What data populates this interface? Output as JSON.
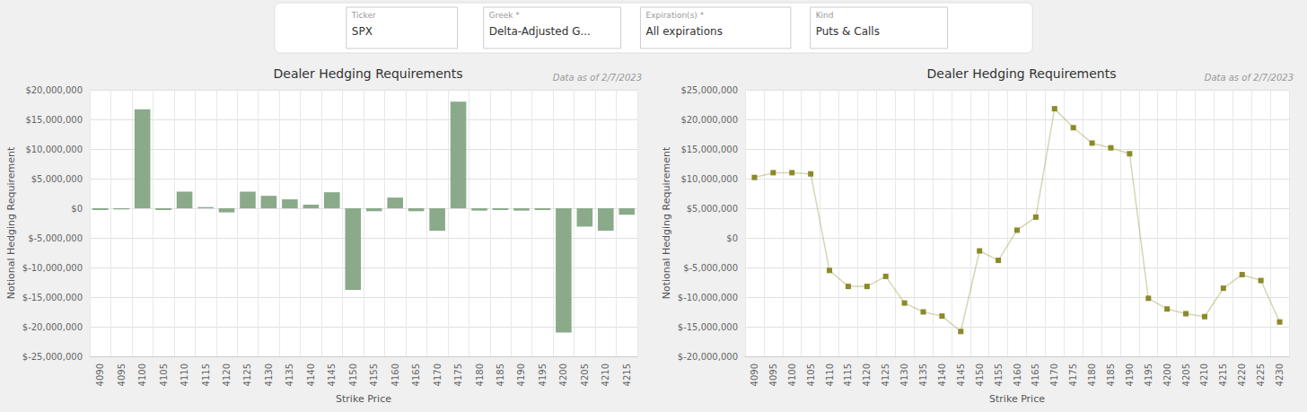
{
  "annotations": [
    {
      "label": "Ticker",
      "text": "SPX"
    },
    {
      "label": "Greek *",
      "text": "Delta-Adjusted G..."
    },
    {
      "label": "Expiration(s) *",
      "text": "All expirations"
    },
    {
      "label": "Kind",
      "text": "Puts & Calls"
    }
  ],
  "chart_data": [
    {
      "type": "bar",
      "title": "Dealer Hedging Requirements",
      "subtitle": "Data as of 2/7/2023",
      "xlabel": "Strike Price",
      "ylabel": "Notional Hedging Requirement",
      "categories": [
        4090,
        4095,
        4100,
        4105,
        4110,
        4115,
        4120,
        4125,
        4130,
        4135,
        4140,
        4145,
        4150,
        4155,
        4160,
        4165,
        4170,
        4175,
        4180,
        4185,
        4190,
        4195,
        4200,
        4205,
        4210,
        4215
      ],
      "values": [
        -300000,
        -200000,
        16700000,
        -300000,
        2800000,
        200000,
        -700000,
        2800000,
        2100000,
        1500000,
        600000,
        2700000,
        -13800000,
        -500000,
        1800000,
        -500000,
        -3800000,
        18000000,
        -400000,
        -300000,
        -400000,
        -300000,
        -21000000,
        -3100000,
        -3800000,
        -1100000
      ],
      "color": "#8aaa8a",
      "ylim": [
        -25000000,
        20000000
      ],
      "yticks": [
        {
          "value": -25000000,
          "label": "$-25,000,000"
        },
        {
          "value": -20000000,
          "label": "$-20,000,000"
        },
        {
          "value": -15000000,
          "label": "$-15,000,000"
        },
        {
          "value": -10000000,
          "label": "$-10,000,000"
        },
        {
          "value": -5000000,
          "label": "$-5,000,000"
        },
        {
          "value": 0,
          "label": "$0"
        },
        {
          "value": 5000000,
          "label": "$5,000,000"
        },
        {
          "value": 10000000,
          "label": "$10,000,000"
        },
        {
          "value": 15000000,
          "label": "$15,000,000"
        },
        {
          "value": 20000000,
          "label": "$20,000,000"
        }
      ],
      "grid": true
    },
    {
      "type": "line",
      "title": "Dealer Hedging Requirements",
      "subtitle": "Data as of 2/7/2023",
      "xlabel": "Strike Price",
      "ylabel": "Notional Hedging Requirement",
      "categories": [
        4090,
        4095,
        4100,
        4105,
        4110,
        4115,
        4120,
        4125,
        4130,
        4135,
        4140,
        4145,
        4150,
        4155,
        4160,
        4165,
        4170,
        4175,
        4180,
        4185,
        4190,
        4195,
        4200,
        4205,
        4210,
        4215,
        4220,
        4225,
        4230
      ],
      "values": [
        10200000,
        11000000,
        11000000,
        10800000,
        -5500000,
        -8200000,
        -8200000,
        -6500000,
        -11000000,
        -12500000,
        -13200000,
        -15800000,
        -2200000,
        -3800000,
        1300000,
        3500000,
        21800000,
        18600000,
        16000000,
        15200000,
        14200000,
        -10200000,
        -12000000,
        -12800000,
        -13300000,
        -8500000,
        -6200000,
        -7200000,
        -14200000
      ],
      "color": "#8a8a2a",
      "marker": "square",
      "ylim": [
        -20000000,
        25000000
      ],
      "yticks": [
        {
          "value": -20000000,
          "label": "$-20,000,000"
        },
        {
          "value": -15000000,
          "label": "$-15,000,000"
        },
        {
          "value": -10000000,
          "label": "$-10,000,000"
        },
        {
          "value": -5000000,
          "label": "$-5,000,000"
        },
        {
          "value": 0,
          "label": "$0"
        },
        {
          "value": 5000000,
          "label": "$5,000,000"
        },
        {
          "value": 10000000,
          "label": "$10,000,000"
        },
        {
          "value": 15000000,
          "label": "$15,000,000"
        },
        {
          "value": 20000000,
          "label": "$20,000,000"
        },
        {
          "value": 25000000,
          "label": "$25,000,000"
        }
      ],
      "grid": true
    }
  ]
}
